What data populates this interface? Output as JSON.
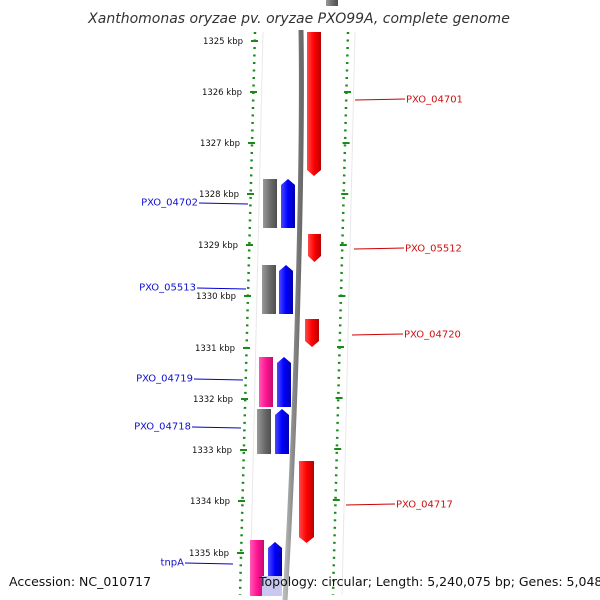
{
  "title": "Xanthomonas oryzae pv. oryzae PXO99A, complete genome",
  "kbp_ticks": [
    "1325 kbp",
    "1326 kbp",
    "1327 kbp",
    "1328 kbp",
    "1329 kbp",
    "1330 kbp",
    "1331 kbp",
    "1332 kbp",
    "1333 kbp",
    "1334 kbp",
    "1335 kbp"
  ],
  "left_labels": [
    "PXO_04702",
    "PXO_05513",
    "PXO_04719",
    "PXO_04718",
    "tnpA"
  ],
  "right_labels": [
    "PXO_04701",
    "PXO_05512",
    "PXO_04720",
    "PXO_04717"
  ],
  "footer": {
    "accession": "Accession: NC_010717",
    "topology": "Topology: circular; Length: 5,240,075 bp; Genes: 5,048"
  },
  "colors": {
    "forward_cds": "#ff0000",
    "reverse_cds": "#0000ff",
    "gray_feature": "#6e6e6e",
    "pink_feature": "#ff1493",
    "dotted_track": "#1a8a1a",
    "backbone": "#888888",
    "left_label": "#0000cc",
    "right_label": "#cc0000"
  }
}
